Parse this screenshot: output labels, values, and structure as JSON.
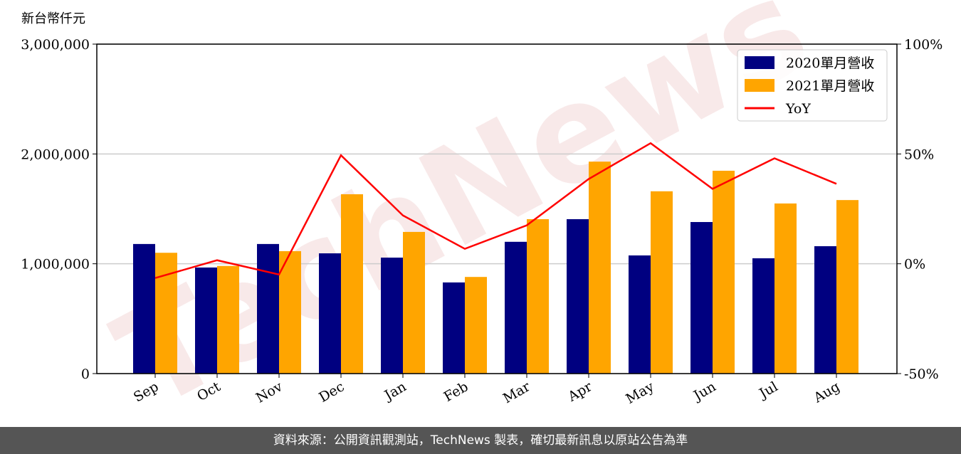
{
  "chart_data": {
    "type": "bar",
    "y_axis_label": "新台幣仟元",
    "watermark": "TechNews",
    "categories": [
      "Sep",
      "Oct",
      "Nov",
      "Dec",
      "Jan",
      "Feb",
      "Mar",
      "Apr",
      "May",
      "Jun",
      "Jul",
      "Aug"
    ],
    "series": [
      {
        "name": "2020單月營收",
        "color": "#000080",
        "type": "bar",
        "values": [
          1180000,
          966000,
          1180000,
          1095000,
          1056000,
          830000,
          1200000,
          1406000,
          1076000,
          1380000,
          1050000,
          1160000
        ]
      },
      {
        "name": "2021單月營收",
        "color": "#ffa500",
        "type": "bar",
        "values": [
          1100000,
          980000,
          1115000,
          1633000,
          1290000,
          880000,
          1406000,
          1930000,
          1660000,
          1847000,
          1549000,
          1580000
        ]
      },
      {
        "name": "YoY",
        "color": "#ff0000",
        "type": "line",
        "axis": "y2",
        "values": [
          -6.5,
          1.6,
          -4.9,
          49.4,
          22,
          6.8,
          17.5,
          38.6,
          54.9,
          34.1,
          48,
          36.4
        ]
      }
    ],
    "ylim": [
      0,
      3000000
    ],
    "yticks": [
      0,
      {
        "value": 1000000,
        "label": "1,000,000"
      },
      {
        "value": 2000000,
        "label": "2,000,000"
      },
      {
        "value": 3000000,
        "label": "3,000,000"
      }
    ],
    "y2lim": [
      -50,
      100
    ],
    "y2ticks": [
      {
        "value": -50,
        "label": "-50%"
      },
      {
        "value": 0,
        "label": "0%"
      },
      {
        "value": 50,
        "label": "50%"
      },
      {
        "value": 100,
        "label": "100%"
      }
    ],
    "grid": true,
    "legend": "upper right",
    "source": "資料來源：公開資訊觀測站，TechNews 製表，確切最新訊息以原站公告為準"
  }
}
